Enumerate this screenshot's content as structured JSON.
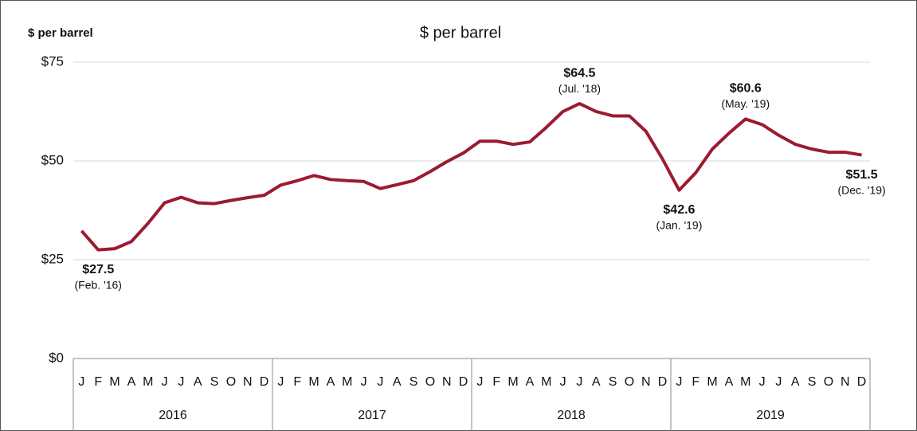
{
  "chart_data": {
    "type": "line",
    "title": "$ per barrel",
    "ylabel": "$ per barrel",
    "categories": [
      "J",
      "F",
      "M",
      "A",
      "M",
      "J",
      "J",
      "A",
      "S",
      "O",
      "N",
      "D",
      "J",
      "F",
      "M",
      "A",
      "M",
      "J",
      "J",
      "A",
      "S",
      "O",
      "N",
      "D",
      "J",
      "F",
      "M",
      "A",
      "M",
      "J",
      "J",
      "A",
      "S",
      "O",
      "N",
      "D",
      "J",
      "F",
      "M",
      "A",
      "M",
      "J",
      "J",
      "A",
      "S",
      "O",
      "N",
      "D"
    ],
    "years": [
      "2016",
      "2017",
      "2018",
      "2019"
    ],
    "series": [
      {
        "name": "$ per barrel",
        "color": "#9b1b30",
        "values": [
          32.3,
          27.5,
          27.8,
          29.6,
          34.2,
          39.4,
          40.8,
          39.4,
          39.2,
          40.0,
          40.7,
          41.3,
          43.9,
          45.0,
          46.3,
          45.3,
          45.0,
          44.8,
          43.0,
          44.0,
          45.0,
          47.3,
          49.8,
          52.0,
          55.0,
          55.0,
          54.2,
          54.8,
          58.5,
          62.5,
          64.5,
          62.5,
          61.4,
          61.4,
          57.5,
          50.5,
          42.6,
          47.0,
          53.0,
          57.0,
          60.6,
          59.2,
          56.5,
          54.2,
          53.0,
          52.2,
          52.2,
          51.5
        ],
        "value_labels": [
          null,
          "$27.5",
          null,
          null,
          null,
          null,
          null,
          null,
          null,
          null,
          null,
          null,
          null,
          null,
          null,
          null,
          null,
          null,
          null,
          null,
          null,
          null,
          null,
          null,
          null,
          null,
          null,
          null,
          null,
          null,
          "$64.5",
          null,
          null,
          null,
          null,
          null,
          "$42.6",
          null,
          null,
          null,
          "$60.6",
          null,
          null,
          null,
          null,
          null,
          null,
          "$51.5"
        ],
        "date_labels": [
          null,
          "(Feb. '16)",
          null,
          null,
          null,
          null,
          null,
          null,
          null,
          null,
          null,
          null,
          null,
          null,
          null,
          null,
          null,
          null,
          null,
          null,
          null,
          null,
          null,
          null,
          null,
          null,
          null,
          null,
          null,
          null,
          "(Jul. '18)",
          null,
          null,
          null,
          null,
          null,
          "(Jan. '19)",
          null,
          null,
          null,
          "(May. '19)",
          null,
          null,
          null,
          null,
          null,
          null,
          "(Dec. '19)"
        ]
      }
    ],
    "ylim": [
      0,
      75
    ],
    "yticks": [
      {
        "value": 0,
        "label": "$0"
      },
      {
        "value": 25,
        "label": "$25"
      },
      {
        "value": 50,
        "label": "$50"
      },
      {
        "value": 75,
        "label": "$75"
      }
    ],
    "grid": true
  }
}
